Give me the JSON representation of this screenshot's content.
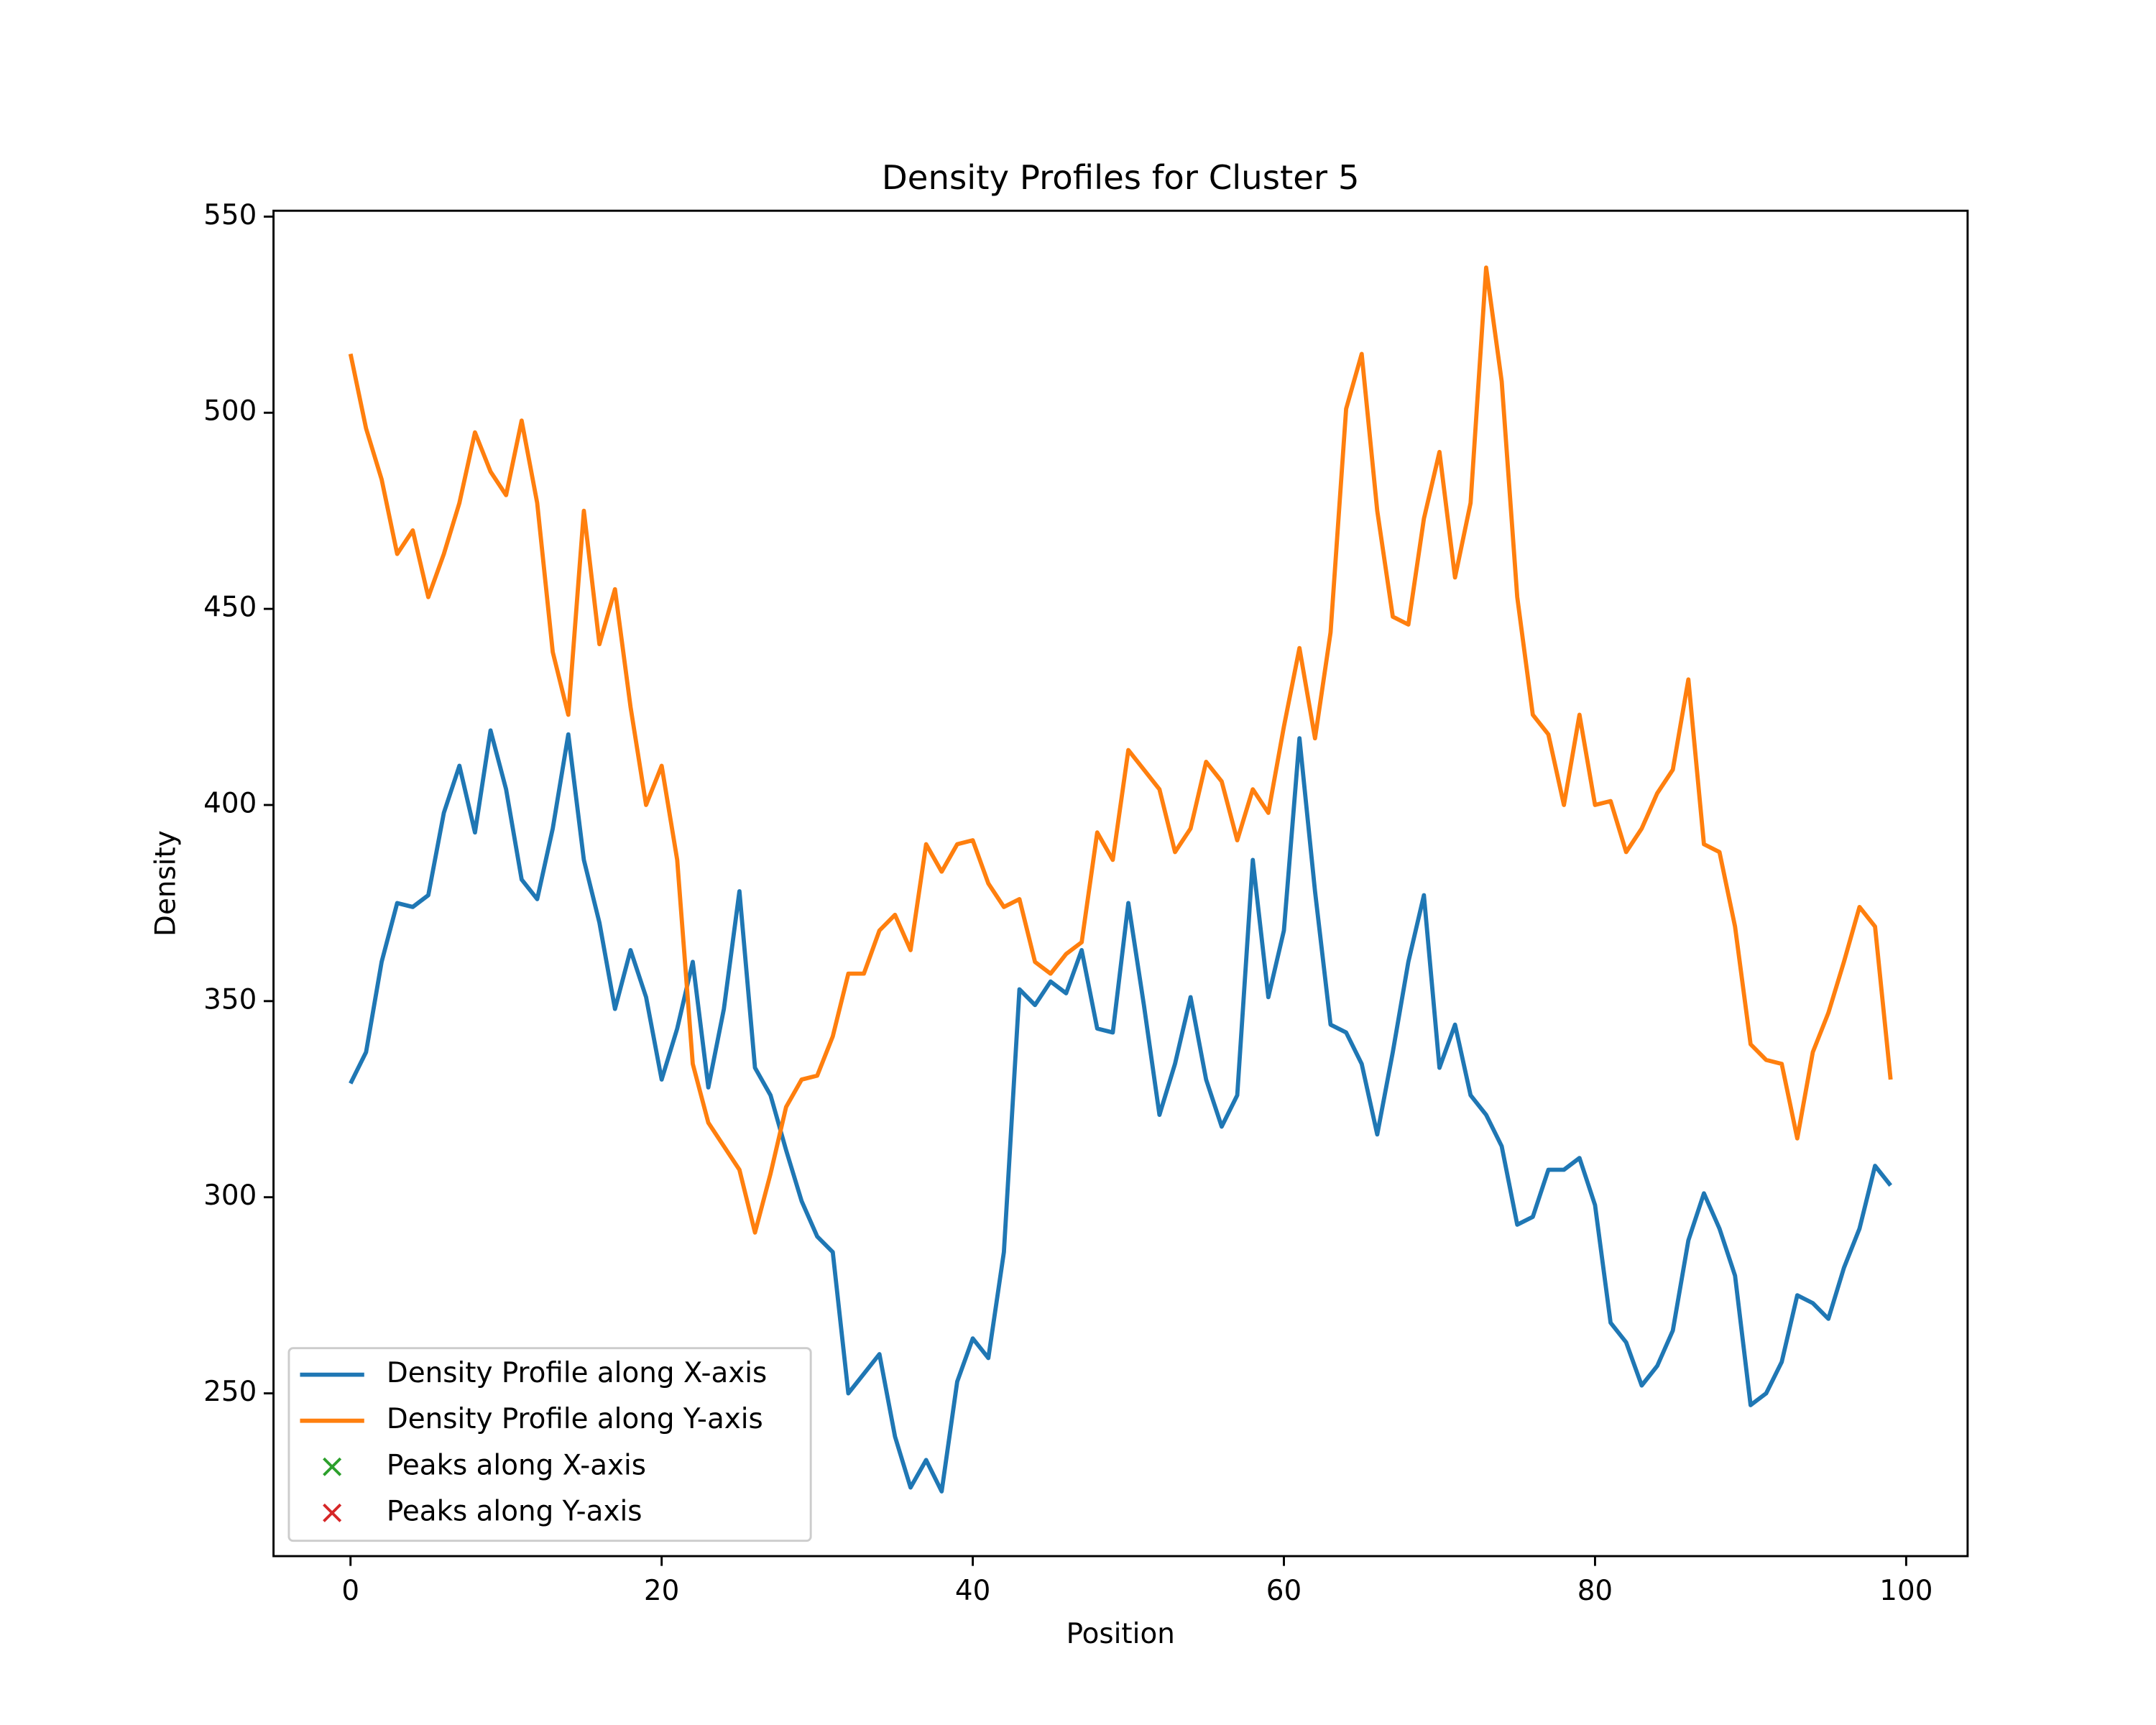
{
  "chart_data": {
    "type": "line",
    "title": "Density Profiles for Cluster 5",
    "xlabel": "Position",
    "ylabel": "Density",
    "x": [
      0,
      1,
      2,
      3,
      4,
      5,
      6,
      7,
      8,
      9,
      10,
      11,
      12,
      13,
      14,
      15,
      16,
      17,
      18,
      19,
      20,
      21,
      22,
      23,
      24,
      25,
      26,
      27,
      28,
      29,
      30,
      31,
      32,
      33,
      34,
      35,
      36,
      37,
      38,
      39,
      40,
      41,
      42,
      43,
      44,
      45,
      46,
      47,
      48,
      49,
      50,
      51,
      52,
      53,
      54,
      55,
      56,
      57,
      58,
      59,
      60,
      61,
      62,
      63,
      64,
      65,
      66,
      67,
      68,
      69,
      70,
      71,
      72,
      73,
      74,
      75,
      76,
      77,
      78,
      79,
      80,
      81,
      82,
      83,
      84,
      85,
      86,
      87,
      88,
      89,
      90,
      91,
      92,
      93,
      94,
      95,
      96,
      97,
      98,
      99
    ],
    "series": [
      {
        "name": "Density Profile along X-axis",
        "color": "#1f77b4",
        "values": [
          329,
          337,
          360,
          375,
          374,
          377,
          398,
          410,
          393,
          419,
          404,
          381,
          376,
          394,
          418,
          386,
          370,
          348,
          363,
          351,
          330,
          343,
          360,
          328,
          348,
          378,
          333,
          326,
          312,
          299,
          290,
          286,
          250,
          255,
          260,
          239,
          226,
          233,
          225,
          253,
          264,
          259,
          286,
          353,
          349,
          355,
          352,
          363,
          343,
          342,
          375,
          349,
          321,
          334,
          351,
          330,
          318,
          326,
          386,
          351,
          368,
          417,
          378,
          344,
          342,
          334,
          316,
          337,
          360,
          377,
          333,
          344,
          326,
          321,
          313,
          293,
          295,
          307,
          307,
          310,
          298,
          268,
          263,
          252,
          257,
          266,
          289,
          301,
          292,
          280,
          247,
          250,
          258,
          275,
          273,
          269,
          282,
          292,
          308,
          303
        ]
      },
      {
        "name": "Density Profile along Y-axis",
        "color": "#ff7f0e",
        "values": [
          515,
          496,
          483,
          464,
          470,
          453,
          464,
          477,
          495,
          485,
          479,
          498,
          477,
          439,
          423,
          475,
          441,
          455,
          425,
          400,
          410,
          386,
          334,
          319,
          313,
          307,
          291,
          306,
          323,
          330,
          331,
          341,
          357,
          357,
          368,
          372,
          363,
          390,
          383,
          390,
          391,
          380,
          374,
          376,
          360,
          357,
          362,
          365,
          393,
          386,
          414,
          409,
          404,
          388,
          394,
          411,
          406,
          391,
          404,
          398,
          420,
          440,
          417,
          444,
          501,
          515,
          475,
          448,
          446,
          473,
          490,
          458,
          477,
          537,
          508,
          453,
          423,
          418,
          400,
          423,
          400,
          401,
          388,
          394,
          403,
          409,
          432,
          390,
          388,
          369,
          339,
          335,
          334,
          315,
          337,
          347,
          360,
          374,
          369,
          330
        ]
      },
      {
        "name": "Peaks along X-axis",
        "color": "#2ca02c",
        "marker": "x"
      },
      {
        "name": "Peaks along Y-axis",
        "color": "#d62728",
        "marker": "x"
      }
    ],
    "xlim": [
      -4.95,
      103.95
    ],
    "xticks": [
      0,
      20,
      40,
      60,
      80,
      100
    ],
    "ylim": [
      208.5,
      551.5
    ],
    "yticks": [
      250,
      300,
      350,
      400,
      450,
      500,
      550
    ],
    "legend": "lower left"
  }
}
